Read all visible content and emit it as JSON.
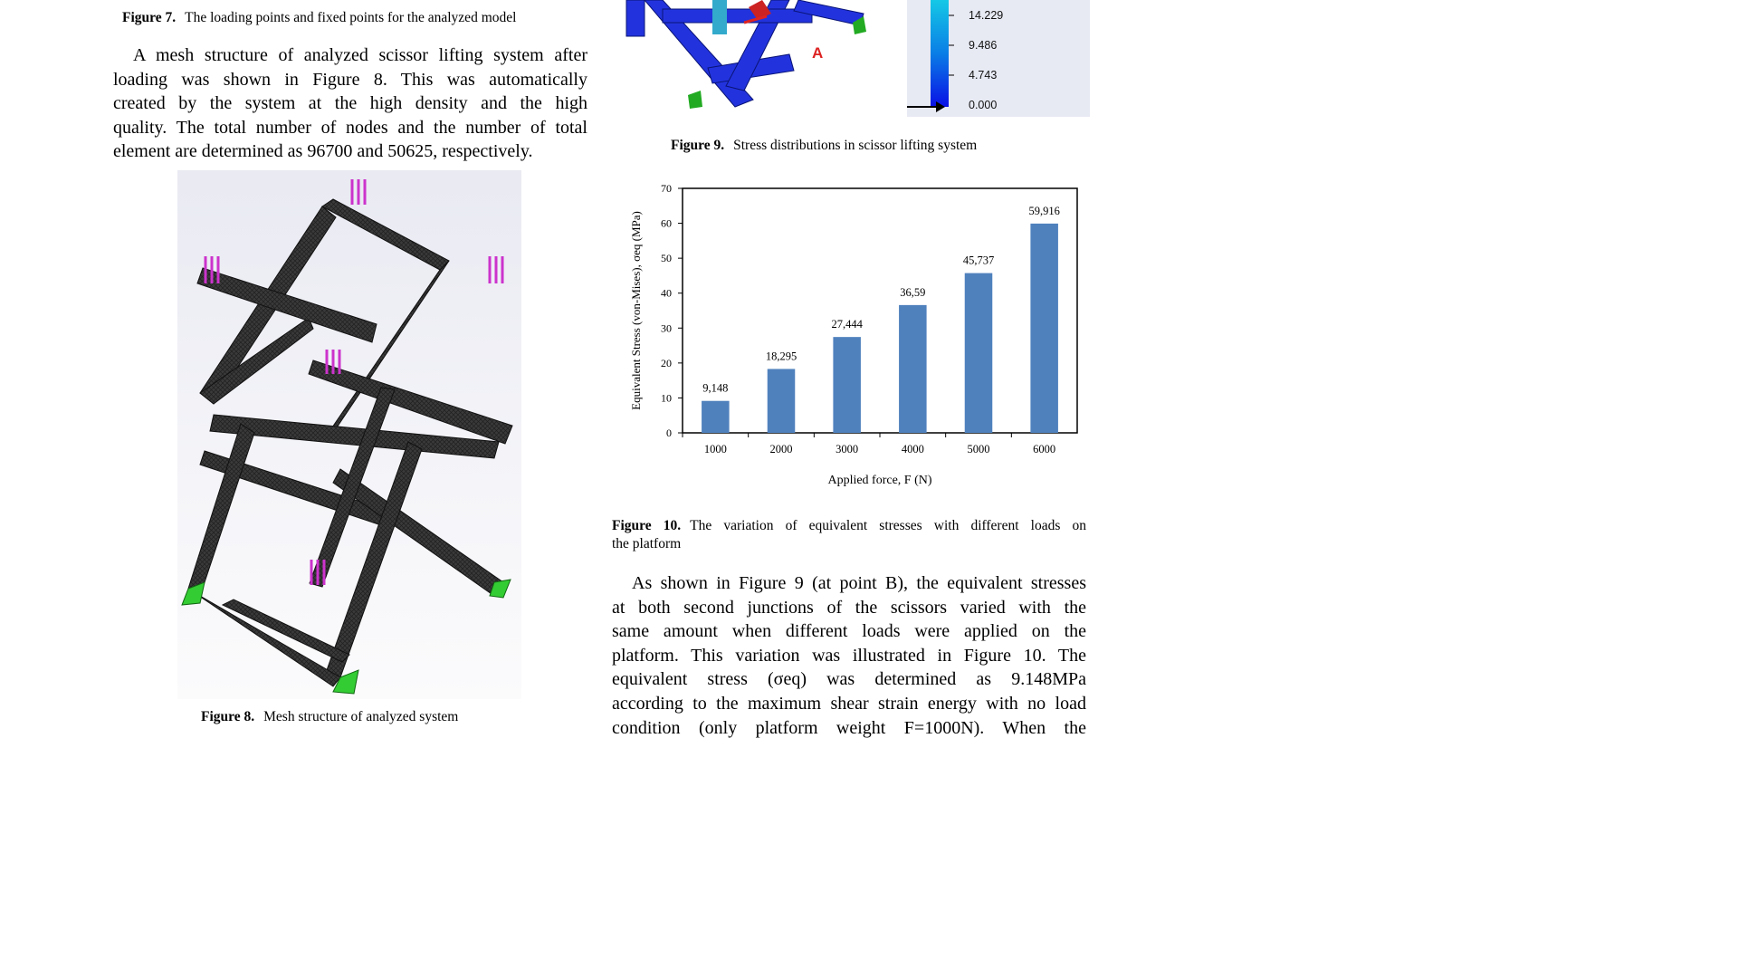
{
  "figure7": {
    "label": "Figure 7.",
    "text": "The loading points and fixed points for the analyzed model"
  },
  "left_paragraph": {
    "lines": [
      "A mesh structure of analyzed scissor lifting system after",
      "loading was shown in Figure 8. This was automatically",
      "created by the system at the high density and the high",
      "quality. The total number of nodes and the number of total",
      "element are determined as 96700 and 50625, respectively."
    ]
  },
  "figure8": {
    "label": "Figure 8.",
    "text": "Mesh structure of analyzed system"
  },
  "figure9": {
    "label": "Figure 9.",
    "text": "Stress distributions in scissor lifting system",
    "point_label": "A",
    "legend_values": [
      "14.229",
      "9.486",
      "4.743",
      "0.000"
    ]
  },
  "figure10": {
    "label": "Figure 10.",
    "text_line1": "The variation of equivalent stresses with different loads on",
    "text_line2": "the platform"
  },
  "chart_data": {
    "type": "bar",
    "categories": [
      "1000",
      "2000",
      "3000",
      "4000",
      "5000",
      "6000"
    ],
    "values": [
      9.148,
      18.295,
      27.444,
      36.59,
      45.737,
      59.916
    ],
    "data_labels": [
      "9,148",
      "18,295",
      "27,444",
      "36,59",
      "45,737",
      "59,916"
    ],
    "xlabel": "Applied force, F (N)",
    "ylabel": "Equivalent Stress (von-Mises), σeq (MPa)",
    "yticks": [
      0,
      10,
      20,
      30,
      40,
      50,
      60,
      70
    ],
    "ylim": [
      0,
      70
    ],
    "grid": false,
    "bar_color": "#4f81bd"
  },
  "right_paragraph": {
    "lines": [
      "As shown in Figure 9 (at point B), the equivalent stresses",
      "at both second junctions of the scissors varied with the",
      "same amount when different loads were applied on the",
      "platform. This variation was illustrated in Figure 10. The",
      "equivalent stress (σeq) was determined as 9.148MPa",
      "according to the maximum shear strain energy with no load",
      "condition (only platform weight F=1000N). When the"
    ]
  }
}
